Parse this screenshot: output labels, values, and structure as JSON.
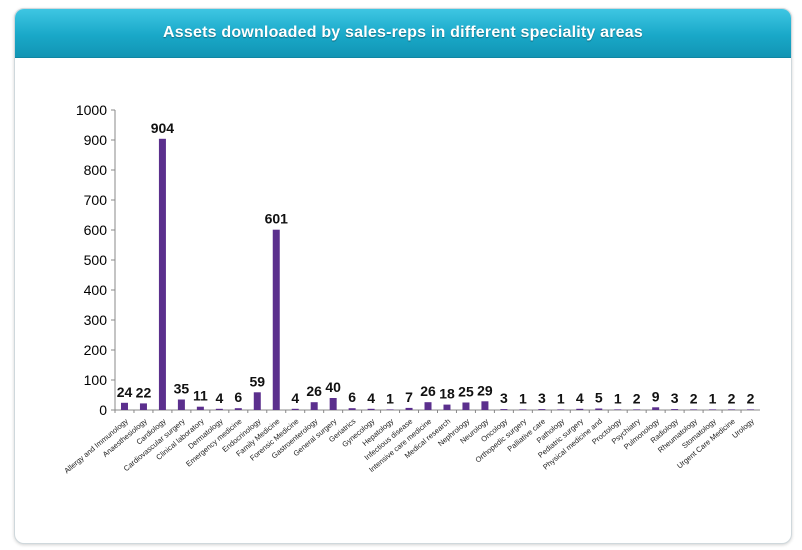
{
  "chart_data": {
    "type": "bar",
    "title": "Assets downloaded by sales-reps in different speciality areas",
    "ylim": [
      0,
      1000
    ],
    "y_ticks": [
      0,
      100,
      200,
      300,
      400,
      500,
      600,
      700,
      800,
      900,
      1000
    ],
    "grid": false,
    "bar_color": "#5b2f8d",
    "categories": [
      "Allergy and Immunology",
      "Anaesthesiology",
      "Cardiology",
      "Cardiovascular surgery",
      "Clinical laboratory",
      "Dermatology",
      "Emergency medicine",
      "Endocrinology",
      "Family Medicine",
      "Forensic Medicine",
      "Gastroenterology",
      "General surgery",
      "Geriatrics",
      "Gynecology",
      "Hepatology",
      "Infectious disease",
      "Intensive care medicine",
      "Medical research",
      "Nephrology",
      "Neurology",
      "Oncology",
      "Orthopedic surgery",
      "Palliative care",
      "Pathology",
      "Pediatric surgery",
      "Physical medicine and",
      "Proctology",
      "Psychiatry",
      "Pulmonology",
      "Radiology",
      "Rheumatology",
      "Stomatology",
      "Urgent Care Medicine",
      "Urology"
    ],
    "values": [
      24,
      22,
      904,
      35,
      11,
      4,
      6,
      59,
      601,
      4,
      26,
      40,
      6,
      4,
      1,
      7,
      26,
      18,
      25,
      29,
      3,
      1,
      3,
      1,
      4,
      5,
      1,
      2,
      9,
      3,
      2,
      1,
      2,
      2
    ]
  }
}
